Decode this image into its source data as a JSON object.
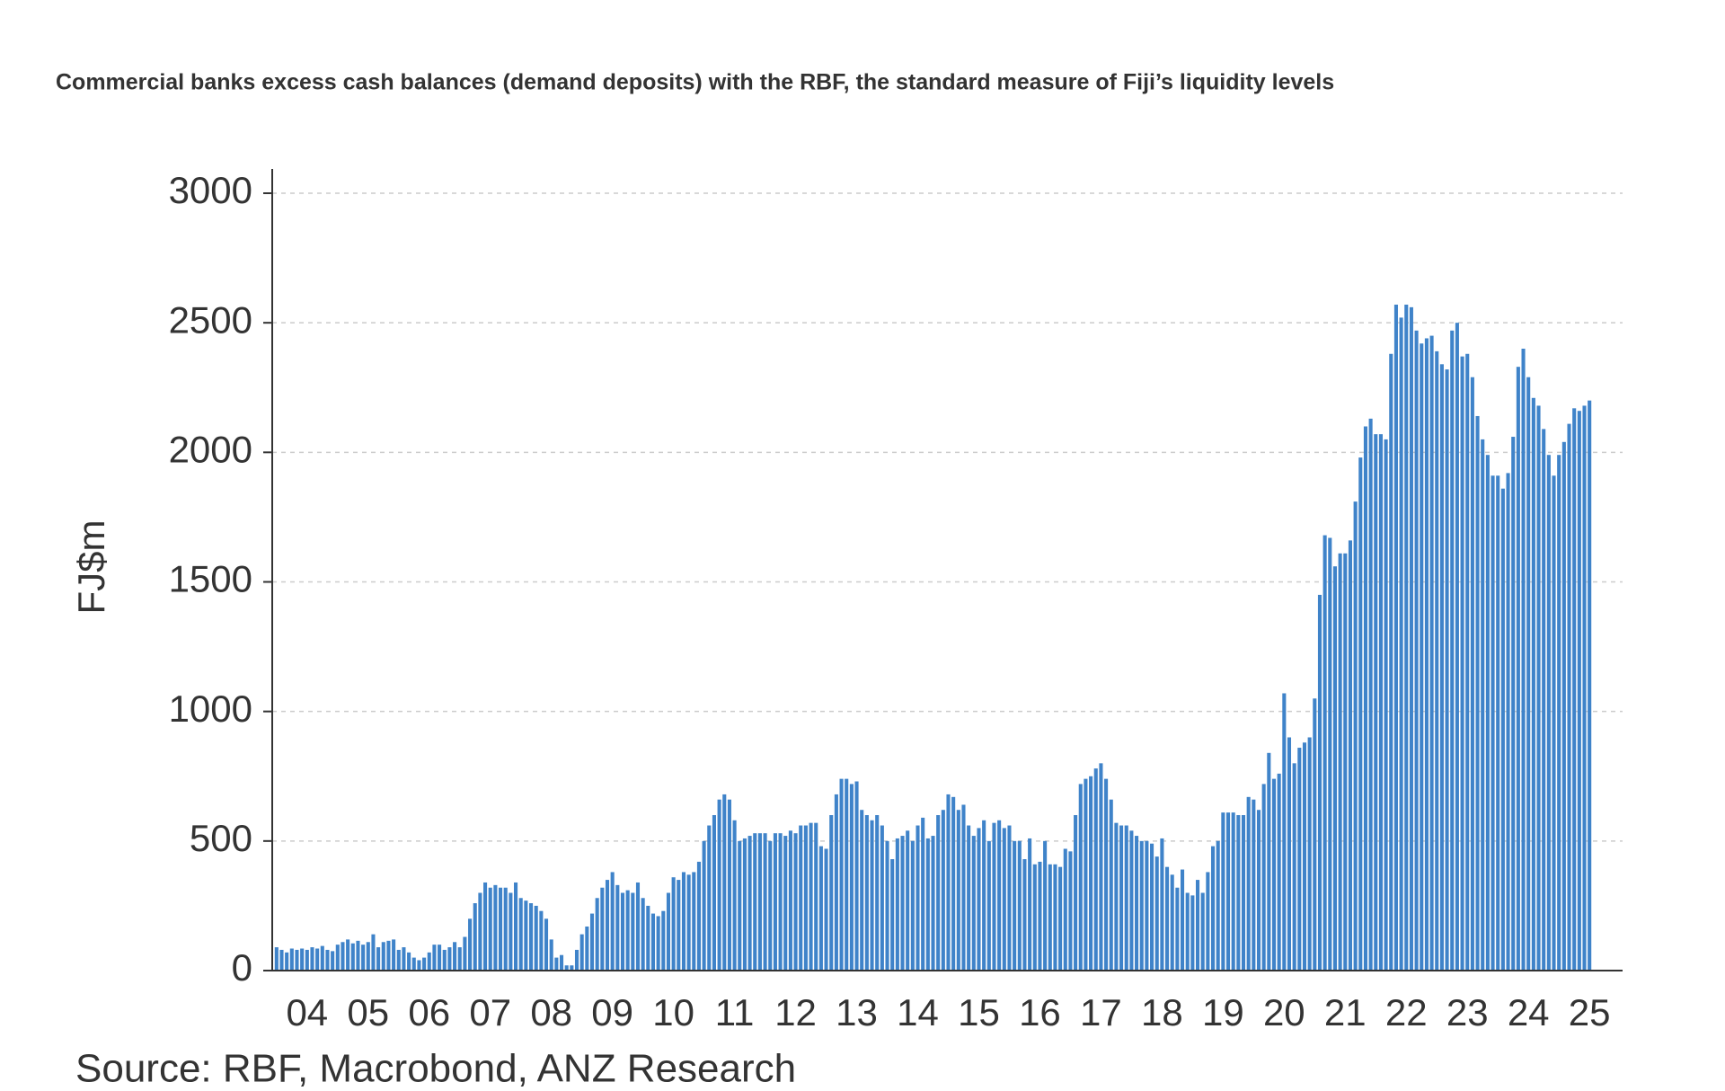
{
  "chart_data": {
    "type": "bar",
    "title": "Commercial banks excess cash balances (demand deposits) with the RBF, the standard measure of Fiji’s liquidity levels",
    "y_label": "FJ$m",
    "source": "Source: RBF, Macrobond, ANZ Research",
    "color": "#3f83c9",
    "grid": true,
    "ylim": [
      0,
      3000
    ],
    "yticks": [
      0,
      500,
      1000,
      1500,
      2000,
      2500,
      3000
    ],
    "categories": [
      null,
      null,
      null,
      null,
      null,
      null,
      "04",
      null,
      null,
      null,
      null,
      null,
      null,
      null,
      null,
      null,
      null,
      null,
      "05",
      null,
      null,
      null,
      null,
      null,
      null,
      null,
      null,
      null,
      null,
      null,
      "06",
      null,
      null,
      null,
      null,
      null,
      null,
      null,
      null,
      null,
      null,
      null,
      "07",
      null,
      null,
      null,
      null,
      null,
      null,
      null,
      null,
      null,
      null,
      null,
      "08",
      null,
      null,
      null,
      null,
      null,
      null,
      null,
      null,
      null,
      null,
      null,
      "09",
      null,
      null,
      null,
      null,
      null,
      null,
      null,
      null,
      null,
      null,
      null,
      "10",
      null,
      null,
      null,
      null,
      null,
      null,
      null,
      null,
      null,
      null,
      null,
      "11",
      null,
      null,
      null,
      null,
      null,
      null,
      null,
      null,
      null,
      null,
      null,
      "12",
      null,
      null,
      null,
      null,
      null,
      null,
      null,
      null,
      null,
      null,
      null,
      "13",
      null,
      null,
      null,
      null,
      null,
      null,
      null,
      null,
      null,
      null,
      null,
      "14",
      null,
      null,
      null,
      null,
      null,
      null,
      null,
      null,
      null,
      null,
      null,
      "15",
      null,
      null,
      null,
      null,
      null,
      null,
      null,
      null,
      null,
      null,
      null,
      "16",
      null,
      null,
      null,
      null,
      null,
      null,
      null,
      null,
      null,
      null,
      null,
      "17",
      null,
      null,
      null,
      null,
      null,
      null,
      null,
      null,
      null,
      null,
      null,
      "18",
      null,
      null,
      null,
      null,
      null,
      null,
      null,
      null,
      null,
      null,
      null,
      "19",
      null,
      null,
      null,
      null,
      null,
      null,
      null,
      null,
      null,
      null,
      null,
      "20",
      null,
      null,
      null,
      null,
      null,
      null,
      null,
      null,
      null,
      null,
      null,
      "21",
      null,
      null,
      null,
      null,
      null,
      null,
      null,
      null,
      null,
      null,
      null,
      "22",
      null,
      null,
      null,
      null,
      null,
      null,
      null,
      null,
      null,
      null,
      null,
      "23",
      null,
      null,
      null,
      null,
      null,
      null,
      null,
      null,
      null,
      null,
      null,
      "24",
      null,
      null,
      null,
      null,
      null,
      null,
      null,
      null,
      null,
      null,
      null,
      "25"
    ],
    "values": [
      90,
      80,
      70,
      85,
      80,
      85,
      80,
      90,
      85,
      95,
      80,
      75,
      100,
      110,
      120,
      105,
      115,
      100,
      110,
      140,
      90,
      110,
      115,
      120,
      80,
      90,
      70,
      50,
      40,
      50,
      70,
      100,
      100,
      80,
      90,
      110,
      90,
      130,
      200,
      260,
      300,
      340,
      320,
      330,
      320,
      320,
      300,
      340,
      280,
      270,
      260,
      250,
      230,
      200,
      120,
      50,
      60,
      20,
      20,
      80,
      140,
      170,
      220,
      280,
      320,
      350,
      380,
      330,
      300,
      310,
      300,
      340,
      280,
      250,
      220,
      210,
      230,
      300,
      360,
      350,
      380,
      370,
      380,
      420,
      500,
      560,
      600,
      660,
      680,
      660,
      580,
      500,
      510,
      520,
      530,
      530,
      530,
      500,
      530,
      530,
      520,
      540,
      530,
      560,
      560,
      570,
      570,
      480,
      470,
      600,
      680,
      740,
      740,
      720,
      730,
      620,
      600,
      580,
      600,
      560,
      500,
      430,
      510,
      520,
      540,
      500,
      560,
      590,
      510,
      520,
      600,
      620,
      680,
      670,
      620,
      640,
      560,
      520,
      550,
      580,
      500,
      570,
      580,
      550,
      560,
      500,
      500,
      430,
      510,
      410,
      420,
      500,
      410,
      410,
      400,
      470,
      460,
      600,
      720,
      740,
      750,
      780,
      800,
      740,
      660,
      570,
      560,
      560,
      540,
      520,
      500,
      500,
      490,
      440,
      510,
      400,
      370,
      320,
      390,
      300,
      290,
      350,
      300,
      380,
      480,
      500,
      610,
      610,
      610,
      600,
      600,
      670,
      660,
      620,
      720,
      840,
      740,
      760,
      1070,
      900,
      800,
      860,
      880,
      900,
      1050,
      1450,
      1680,
      1670,
      1560,
      1610,
      1610,
      1660,
      1810,
      1980,
      2100,
      2130,
      2070,
      2070,
      2050,
      2380,
      2570,
      2520,
      2570,
      2560,
      2470,
      2420,
      2440,
      2450,
      2390,
      2340,
      2320,
      2470,
      2500,
      2370,
      2380,
      2290,
      2140,
      2050,
      1990,
      1910,
      1910,
      1860,
      1920,
      2060,
      2330,
      2400,
      2290,
      2210,
      2180,
      2090,
      1990,
      1910,
      1990,
      2040,
      2110,
      2170,
      2160,
      2180,
      2200
    ]
  }
}
